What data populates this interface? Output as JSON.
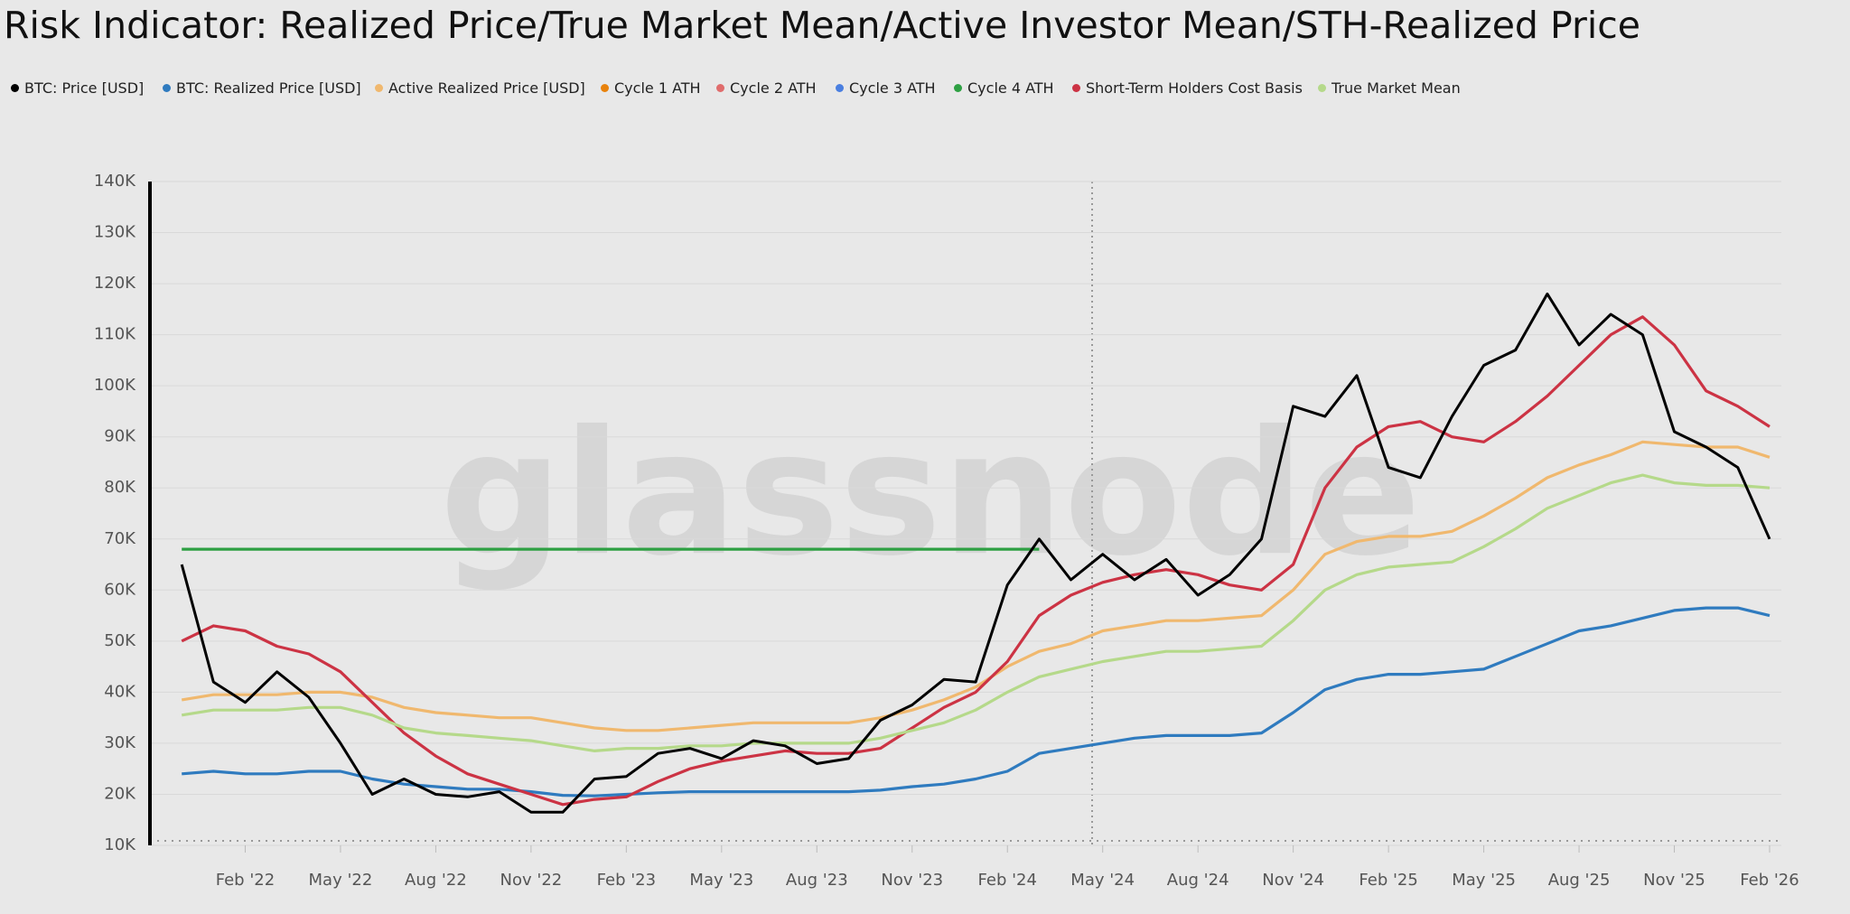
{
  "chart_data": {
    "type": "line",
    "title": "Risk Indicator: Realized Price/True Market Mean/Active Investor Mean/STH-Realized Price",
    "watermark": "glassnode",
    "x": [
      "2021-12",
      "2022-01",
      "2022-02",
      "2022-03",
      "2022-04",
      "2022-05",
      "2022-06",
      "2022-07",
      "2022-08",
      "2022-09",
      "2022-10",
      "2022-11",
      "2022-12",
      "2023-01",
      "2023-02",
      "2023-03",
      "2023-04",
      "2023-05",
      "2023-06",
      "2023-07",
      "2023-08",
      "2023-09",
      "2023-10",
      "2023-11",
      "2023-12",
      "2024-01",
      "2024-02",
      "2024-03",
      "2024-04",
      "2024-05",
      "2024-06",
      "2024-07",
      "2024-08",
      "2024-09",
      "2024-10",
      "2024-11",
      "2024-12",
      "2025-01",
      "2025-02",
      "2025-03",
      "2025-04",
      "2025-05",
      "2025-06",
      "2025-07",
      "2025-08",
      "2025-09",
      "2025-10",
      "2025-11",
      "2025-12",
      "2026-01",
      "2026-02"
    ],
    "xlim": [
      "2021-11",
      "2026-02"
    ],
    "xticks": [
      {
        "value": "2022-02",
        "label": "Feb '22"
      },
      {
        "value": "2022-05",
        "label": "May '22"
      },
      {
        "value": "2022-08",
        "label": "Aug '22"
      },
      {
        "value": "2022-11",
        "label": "Nov '22"
      },
      {
        "value": "2023-02",
        "label": "Feb '23"
      },
      {
        "value": "2023-05",
        "label": "May '23"
      },
      {
        "value": "2023-08",
        "label": "Aug '23"
      },
      {
        "value": "2023-11",
        "label": "Nov '23"
      },
      {
        "value": "2024-02",
        "label": "Feb '24"
      },
      {
        "value": "2024-05",
        "label": "May '24"
      },
      {
        "value": "2024-08",
        "label": "Aug '24"
      },
      {
        "value": "2024-11",
        "label": "Nov '24"
      },
      {
        "value": "2025-02",
        "label": "Feb '25"
      },
      {
        "value": "2025-05",
        "label": "May '25"
      },
      {
        "value": "2025-08",
        "label": "Aug '25"
      },
      {
        "value": "2025-11",
        "label": "Nov '25"
      },
      {
        "value": "2026-02",
        "label": "Feb '26"
      }
    ],
    "ylim": [
      10000,
      140000
    ],
    "yticks": [
      {
        "value": 10000,
        "label": "10K"
      },
      {
        "value": 20000,
        "label": "20K"
      },
      {
        "value": 30000,
        "label": "30K"
      },
      {
        "value": 40000,
        "label": "40K"
      },
      {
        "value": 50000,
        "label": "50K"
      },
      {
        "value": 60000,
        "label": "60K"
      },
      {
        "value": 70000,
        "label": "70K"
      },
      {
        "value": 80000,
        "label": "80K"
      },
      {
        "value": 90000,
        "label": "90K"
      },
      {
        "value": 100000,
        "label": "100K"
      },
      {
        "value": 110000,
        "label": "110K"
      },
      {
        "value": 120000,
        "label": "120K"
      },
      {
        "value": 130000,
        "label": "130K"
      },
      {
        "value": 140000,
        "label": "140K"
      }
    ],
    "grid": true,
    "series": [
      {
        "name": "BTC: Price [USD]",
        "color": "#000000",
        "values": [
          65000,
          42000,
          38000,
          44000,
          39000,
          30000,
          20000,
          23000,
          20000,
          19500,
          20500,
          16500,
          16500,
          23000,
          23500,
          28000,
          29000,
          27000,
          30500,
          29500,
          26000,
          27000,
          34500,
          37500,
          42500,
          42000,
          61000,
          70000,
          62000,
          67000,
          62000,
          66000,
          59000,
          63000,
          70000,
          96000,
          94000,
          102000,
          84000,
          82000,
          94000,
          104000,
          107000,
          118000,
          108000,
          114000,
          110000,
          91000,
          88000,
          84000,
          70000
        ]
      },
      {
        "name": "BTC: Realized Price [USD]",
        "color": "#2f7bbf",
        "values": [
          24000,
          24500,
          24000,
          24000,
          24500,
          24500,
          23000,
          22000,
          21500,
          21000,
          21000,
          20500,
          19800,
          19700,
          20000,
          20300,
          20500,
          20500,
          20500,
          20500,
          20500,
          20500,
          20800,
          21500,
          22000,
          23000,
          24500,
          28000,
          29000,
          30000,
          31000,
          31500,
          31500,
          31500,
          32000,
          36000,
          40500,
          42500,
          43500,
          43500,
          44000,
          44500,
          47000,
          49500,
          52000,
          53000,
          54500,
          56000,
          56500,
          56500,
          55000
        ]
      },
      {
        "name": "Active Realized Price [USD]",
        "color": "#f0b86e",
        "values": [
          38500,
          39500,
          39500,
          39500,
          40000,
          40000,
          39000,
          37000,
          36000,
          35500,
          35000,
          35000,
          34000,
          33000,
          32500,
          32500,
          33000,
          33500,
          34000,
          34000,
          34000,
          34000,
          35000,
          36500,
          38500,
          41000,
          45000,
          48000,
          49500,
          52000,
          53000,
          54000,
          54000,
          54500,
          55000,
          60000,
          67000,
          69500,
          70500,
          70500,
          71500,
          74500,
          78000,
          82000,
          84500,
          86500,
          89000,
          88500,
          88000,
          88000,
          86000
        ]
      },
      {
        "name": "Cycle 1 ATH",
        "color": "#e8820c",
        "values": [
          null,
          null,
          null,
          null,
          null,
          null,
          null,
          null,
          null,
          null,
          null,
          null,
          null,
          null,
          null,
          null,
          null,
          null,
          null,
          null,
          null,
          null,
          null,
          null,
          null,
          null,
          null,
          null,
          null,
          null,
          null,
          null,
          null,
          null,
          null,
          null,
          null,
          null,
          null,
          null,
          null,
          null,
          null,
          null,
          null,
          null,
          null,
          null,
          null,
          null,
          null
        ]
      },
      {
        "name": "Cycle 2 ATH",
        "color": "#e06c6c",
        "values": [
          null,
          null,
          null,
          null,
          null,
          null,
          null,
          null,
          null,
          null,
          null,
          null,
          null,
          null,
          null,
          null,
          null,
          null,
          null,
          null,
          null,
          null,
          null,
          null,
          null,
          null,
          null,
          null,
          null,
          null,
          null,
          null,
          null,
          null,
          null,
          null,
          null,
          null,
          null,
          null,
          null,
          null,
          null,
          null,
          null,
          null,
          null,
          null,
          null,
          null,
          null
        ]
      },
      {
        "name": "Cycle 3 ATH",
        "color": "#4a7fe0",
        "values": [
          null,
          null,
          null,
          null,
          null,
          null,
          null,
          null,
          null,
          null,
          null,
          null,
          null,
          null,
          null,
          null,
          null,
          null,
          null,
          null,
          null,
          null,
          null,
          null,
          null,
          null,
          null,
          null,
          null,
          null,
          null,
          null,
          null,
          null,
          null,
          null,
          null,
          null,
          null,
          null,
          null,
          null,
          null,
          null,
          null,
          null,
          null,
          null,
          null,
          null,
          null
        ]
      },
      {
        "name": "Cycle 4 ATH",
        "color": "#2ea043",
        "values": [
          68000,
          68000,
          68000,
          68000,
          68000,
          68000,
          68000,
          68000,
          68000,
          68000,
          68000,
          68000,
          68000,
          68000,
          68000,
          68000,
          68000,
          68000,
          68000,
          68000,
          68000,
          68000,
          68000,
          68000,
          68000,
          68000,
          68000,
          68000,
          null,
          null,
          null,
          null,
          null,
          null,
          null,
          null,
          null,
          null,
          null,
          null,
          null,
          null,
          null,
          null,
          null,
          null,
          null,
          null,
          null,
          null,
          null
        ]
      },
      {
        "name": "Short-Term Holders Cost Basis",
        "color": "#cc3344",
        "values": [
          50000,
          53000,
          52000,
          49000,
          47500,
          44000,
          38000,
          32000,
          27500,
          24000,
          22000,
          20000,
          18000,
          19000,
          19500,
          22500,
          25000,
          26500,
          27500,
          28500,
          28000,
          28000,
          29000,
          33000,
          37000,
          40000,
          46000,
          55000,
          59000,
          61500,
          63000,
          64000,
          63000,
          61000,
          60000,
          65000,
          80000,
          88000,
          92000,
          93000,
          90000,
          89000,
          93000,
          98000,
          104000,
          110000,
          113500,
          108000,
          99000,
          96000,
          92000
        ]
      },
      {
        "name": "True Market Mean",
        "color": "#b5d98a",
        "values": [
          35500,
          36500,
          36500,
          36500,
          37000,
          37000,
          35500,
          33000,
          32000,
          31500,
          31000,
          30500,
          29500,
          28500,
          29000,
          29000,
          29500,
          29500,
          30000,
          30000,
          30000,
          30000,
          31000,
          32500,
          34000,
          36500,
          40000,
          43000,
          44500,
          46000,
          47000,
          48000,
          48000,
          48500,
          49000,
          54000,
          60000,
          63000,
          64500,
          65000,
          65500,
          68500,
          72000,
          76000,
          78500,
          81000,
          82500,
          81000,
          80500,
          80500,
          80000
        ]
      }
    ]
  }
}
